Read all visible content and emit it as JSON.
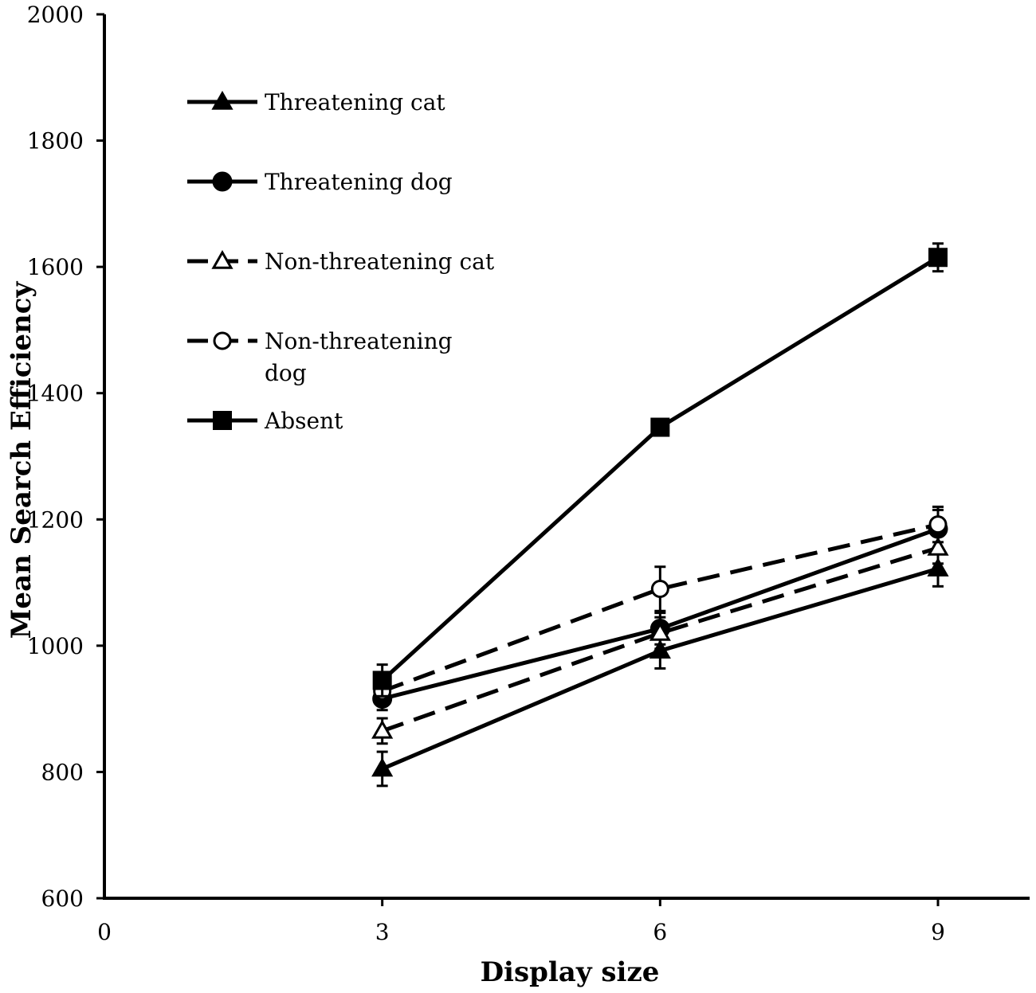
{
  "chart_data": {
    "type": "line",
    "title": "",
    "xlabel": "Display size",
    "ylabel": "Mean Search Efficiency",
    "x": [
      3,
      6,
      9
    ],
    "xlim": [
      0,
      10
    ],
    "ylim": [
      600,
      2000
    ],
    "xticks": [
      "0",
      "3",
      "6",
      "9"
    ],
    "yticks": [
      "600",
      "800",
      "1000",
      "1200",
      "1400",
      "1600",
      "1800",
      "2000"
    ],
    "legend_position": "upper-left",
    "series": [
      {
        "name": "Threatening cat",
        "style": "solid",
        "marker": "triangle-filled",
        "values": [
          805,
          992,
          1122
        ],
        "errors": [
          27,
          28,
          28
        ]
      },
      {
        "name": "Threatening dog",
        "style": "solid",
        "marker": "circle-filled",
        "values": [
          916,
          1027,
          1185
        ],
        "errors": [
          18,
          25,
          30
        ]
      },
      {
        "name": "Non-threatening cat",
        "style": "dashed",
        "marker": "triangle-open",
        "values": [
          865,
          1020,
          1155
        ],
        "errors": [
          20,
          25,
          25
        ]
      },
      {
        "name": "Non-threatening dog",
        "style": "dashed",
        "marker": "circle-open",
        "values": [
          928,
          1090,
          1192
        ],
        "errors": [
          20,
          35,
          28
        ]
      },
      {
        "name": "Absent",
        "style": "solid",
        "marker": "square-filled",
        "values": [
          945,
          1346,
          1615
        ],
        "errors": [
          25,
          12,
          22
        ]
      }
    ],
    "legend_lines": {
      "Threatening cat": [
        "Threatening cat"
      ],
      "Threatening dog": [
        "Threatening dog"
      ],
      "Non-threatening cat": [
        "Non-threatening cat"
      ],
      "Non-threatening dog": [
        "Non-threatening",
        "dog"
      ],
      "Absent": [
        "Absent"
      ]
    },
    "colors": {
      "line": "#000000",
      "background": "#ffffff"
    }
  }
}
